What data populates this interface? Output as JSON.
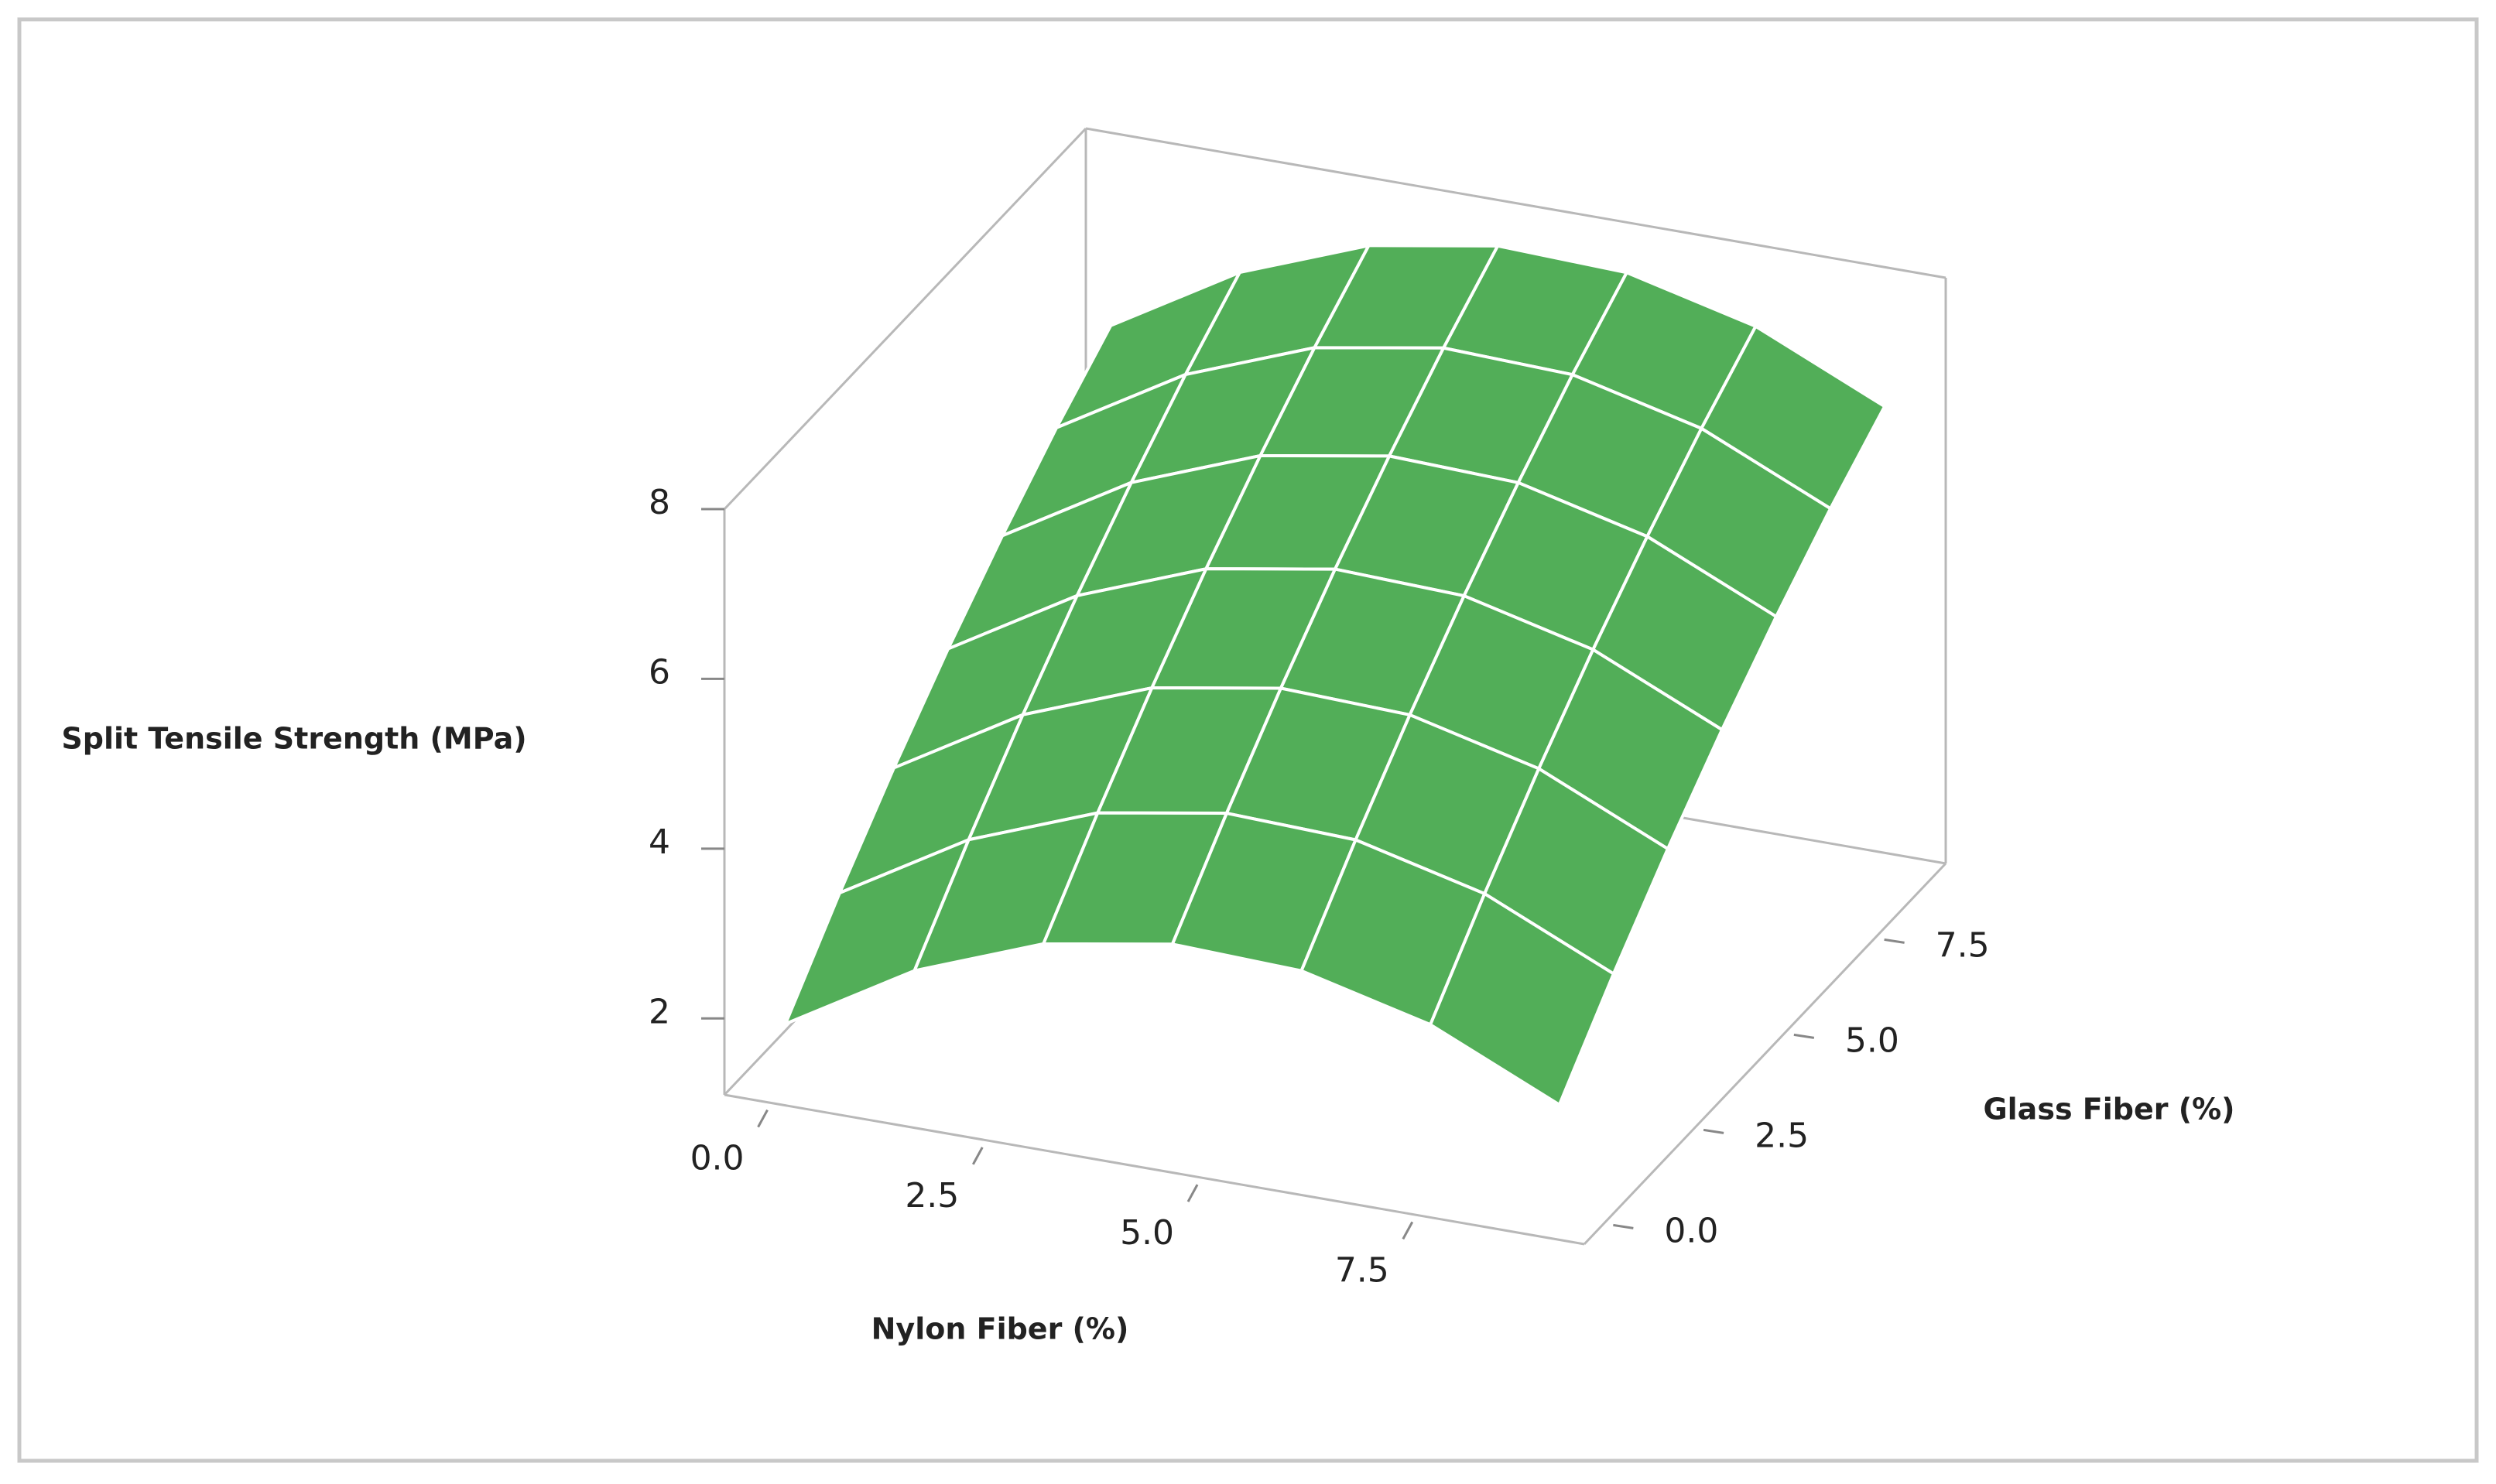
{
  "chart_data": {
    "type": "surface",
    "x_label": "Nylon Fiber (%)",
    "y_label": "Glass Fiber (%)",
    "z_label": "Split Tensile Strength (MPa)",
    "x": [
      0,
      1.5,
      3,
      4.5,
      6,
      7.5,
      9
    ],
    "y": [
      0,
      1.5,
      3,
      4.5,
      6,
      7.5,
      9
    ],
    "z": [
      [
        1.8,
        2.69,
        3.27,
        3.53,
        3.48,
        3.11,
        2.43
      ],
      [
        2.67,
        3.56,
        4.14,
        4.4,
        4.35,
        3.98,
        3.3
      ],
      [
        3.47,
        4.36,
        4.94,
        5.2,
        5.15,
        4.78,
        4.1
      ],
      [
        4.2,
        5.09,
        5.67,
        5.93,
        5.88,
        5.51,
        4.83
      ],
      [
        4.86,
        5.75,
        6.33,
        6.59,
        6.54,
        6.17,
        5.49
      ],
      [
        5.46,
        6.35,
        6.93,
        7.19,
        7.14,
        6.77,
        6.09
      ],
      [
        5.99,
        6.88,
        7.46,
        7.72,
        7.67,
        7.3,
        6.62
      ]
    ],
    "color": "#52ae58",
    "mesh_color": "#ffffff",
    "xlim": [
      -0.5,
      9.5
    ],
    "ylim": [
      -0.5,
      9.5
    ],
    "zlim": [
      1.1,
      8
    ],
    "xticks": [
      {
        "value": 0,
        "label": "0.0"
      },
      {
        "value": 2.5,
        "label": "2.5"
      },
      {
        "value": 5,
        "label": "5.0"
      },
      {
        "value": 7.5,
        "label": "7.5"
      }
    ],
    "yticks": [
      {
        "value": 0,
        "label": "0.0"
      },
      {
        "value": 2.5,
        "label": "2.5"
      },
      {
        "value": 5,
        "label": "5.0"
      },
      {
        "value": 7.5,
        "label": "7.5"
      }
    ],
    "zticks": [
      2,
      4,
      6,
      8
    ]
  }
}
